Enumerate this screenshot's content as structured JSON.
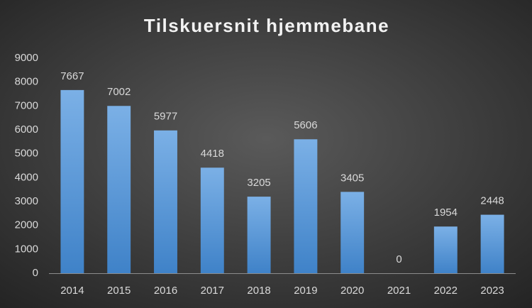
{
  "chart_data": {
    "type": "bar",
    "title": "Tilskuersnit hjemmebane",
    "categories": [
      "2014",
      "2015",
      "2016",
      "2017",
      "2018",
      "2019",
      "2020",
      "2021",
      "2022",
      "2023"
    ],
    "values": [
      7667,
      7002,
      5977,
      4418,
      3205,
      5606,
      3405,
      0,
      1954,
      2448
    ],
    "color": "#5b9bd5",
    "ylim": [
      0,
      9000
    ],
    "yticks": [
      0,
      1000,
      2000,
      3000,
      4000,
      5000,
      6000,
      7000,
      8000,
      9000
    ],
    "grid": false
  }
}
